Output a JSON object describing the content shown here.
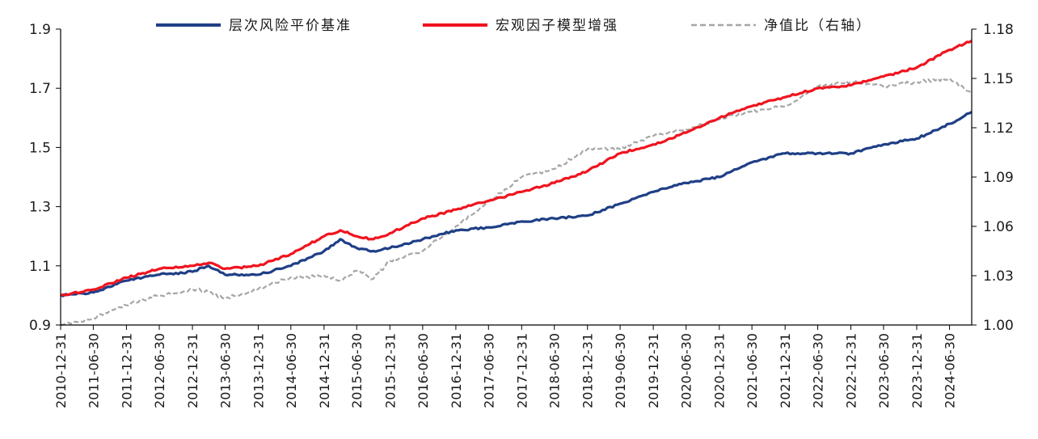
{
  "chart_data": {
    "type": "line",
    "title": "",
    "xlabel": "",
    "ylabel": "",
    "legend_position": "top",
    "grid": false,
    "x_start": "2010-12-31",
    "x_end": "2024-10-31",
    "x_ticks": [
      "2010-12-31",
      "2011-06-30",
      "2011-12-31",
      "2012-06-30",
      "2012-12-31",
      "2013-06-30",
      "2013-12-31",
      "2014-06-30",
      "2014-12-31",
      "2015-06-30",
      "2015-12-31",
      "2016-06-30",
      "2016-12-31",
      "2017-06-30",
      "2017-12-31",
      "2018-06-30",
      "2018-12-31",
      "2019-06-30",
      "2019-12-31",
      "2020-06-30",
      "2020-12-31",
      "2021-06-30",
      "2021-12-31",
      "2022-06-30",
      "2022-12-31",
      "2023-06-30",
      "2023-12-31",
      "2024-06-30"
    ],
    "y_left": {
      "lim": [
        0.9,
        1.9
      ],
      "ticks": [
        "0.9",
        "1.1",
        "1.3",
        "1.5",
        "1.7",
        "1.9"
      ]
    },
    "y_right": {
      "lim": [
        1.0,
        1.18
      ],
      "ticks": [
        "1.00",
        "1.03",
        "1.06",
        "1.09",
        "1.12",
        "1.15",
        "1.18"
      ]
    },
    "series": [
      {
        "name": "层次风险平价基准",
        "axis": "left",
        "color": "#1f3f86",
        "style": "solid",
        "x": [
          "2010-12-31",
          "2011-06-30",
          "2011-12-31",
          "2012-06-30",
          "2012-12-31",
          "2013-03-31",
          "2013-06-30",
          "2013-12-31",
          "2014-06-30",
          "2014-12-31",
          "2015-03-31",
          "2015-06-30",
          "2015-09-30",
          "2015-12-31",
          "2016-06-30",
          "2016-12-31",
          "2017-06-30",
          "2017-12-31",
          "2018-06-30",
          "2018-12-31",
          "2019-06-30",
          "2019-12-31",
          "2020-06-30",
          "2020-12-31",
          "2021-06-30",
          "2021-12-31",
          "2022-06-30",
          "2022-12-31",
          "2023-06-30",
          "2023-12-31",
          "2024-06-30",
          "2024-10-31"
        ],
        "values": [
          1.0,
          1.01,
          1.05,
          1.07,
          1.08,
          1.1,
          1.07,
          1.07,
          1.1,
          1.15,
          1.19,
          1.16,
          1.15,
          1.16,
          1.19,
          1.22,
          1.23,
          1.25,
          1.26,
          1.27,
          1.31,
          1.35,
          1.38,
          1.4,
          1.45,
          1.48,
          1.48,
          1.48,
          1.51,
          1.53,
          1.58,
          1.62
        ]
      },
      {
        "name": "宏观因子模型增强",
        "axis": "left",
        "color": "#f0141e",
        "style": "solid",
        "x": [
          "2010-12-31",
          "2011-06-30",
          "2011-12-31",
          "2012-06-30",
          "2012-12-31",
          "2013-03-31",
          "2013-06-30",
          "2013-12-31",
          "2014-06-30",
          "2014-12-31",
          "2015-03-31",
          "2015-06-30",
          "2015-09-30",
          "2015-12-31",
          "2016-06-30",
          "2016-12-31",
          "2017-06-30",
          "2017-12-31",
          "2018-06-30",
          "2018-12-31",
          "2019-06-30",
          "2019-12-31",
          "2020-06-30",
          "2020-12-31",
          "2021-06-30",
          "2021-12-31",
          "2022-06-30",
          "2022-12-31",
          "2023-06-30",
          "2023-12-31",
          "2024-06-30",
          "2024-10-31"
        ],
        "values": [
          1.0,
          1.02,
          1.06,
          1.09,
          1.1,
          1.11,
          1.09,
          1.1,
          1.14,
          1.2,
          1.22,
          1.2,
          1.19,
          1.21,
          1.26,
          1.29,
          1.32,
          1.35,
          1.38,
          1.42,
          1.48,
          1.51,
          1.55,
          1.6,
          1.64,
          1.67,
          1.7,
          1.71,
          1.74,
          1.77,
          1.83,
          1.86
        ]
      },
      {
        "name": "净值比（右轴）",
        "axis": "right",
        "color": "#a6a6a6",
        "style": "dashed",
        "x": [
          "2010-12-31",
          "2011-06-30",
          "2011-12-31",
          "2012-06-30",
          "2012-12-31",
          "2013-03-31",
          "2013-06-30",
          "2013-12-31",
          "2014-06-30",
          "2014-12-31",
          "2015-03-31",
          "2015-06-30",
          "2015-09-30",
          "2015-12-31",
          "2016-06-30",
          "2016-12-31",
          "2017-06-30",
          "2017-12-31",
          "2018-06-30",
          "2018-12-31",
          "2019-06-30",
          "2019-12-31",
          "2020-06-30",
          "2020-12-31",
          "2021-06-30",
          "2021-12-31",
          "2022-06-30",
          "2022-12-31",
          "2023-06-30",
          "2023-12-31",
          "2024-06-30",
          "2024-10-31"
        ],
        "values": [
          1.0,
          1.004,
          1.012,
          1.018,
          1.022,
          1.02,
          1.016,
          1.022,
          1.029,
          1.03,
          1.027,
          1.033,
          1.028,
          1.039,
          1.045,
          1.06,
          1.075,
          1.09,
          1.095,
          1.107,
          1.107,
          1.115,
          1.119,
          1.125,
          1.13,
          1.133,
          1.145,
          1.148,
          1.145,
          1.148,
          1.15,
          1.141
        ]
      }
    ]
  }
}
